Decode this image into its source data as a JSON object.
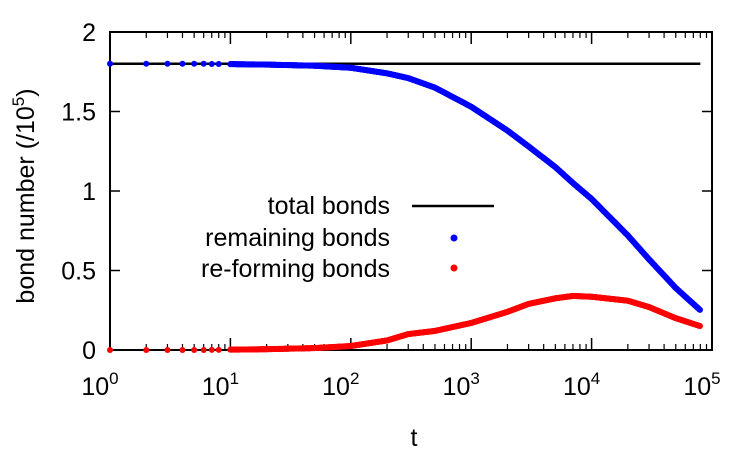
{
  "chart_data": {
    "type": "scatter",
    "title": "",
    "xlabel": "t",
    "ylabel": "bond number (/10",
    "ylabel_exponent": "5",
    "ylabel_suffix": ")",
    "x_scale": "log",
    "xlim": [
      1,
      100000
    ],
    "ylim": [
      0,
      2
    ],
    "x_ticks": [
      {
        "base": "10",
        "exp": "0",
        "value": 1
      },
      {
        "base": "10",
        "exp": "1",
        "value": 10
      },
      {
        "base": "10",
        "exp": "2",
        "value": 100
      },
      {
        "base": "10",
        "exp": "3",
        "value": 1000
      },
      {
        "base": "10",
        "exp": "4",
        "value": 10000
      },
      {
        "base": "10",
        "exp": "5",
        "value": 100000
      }
    ],
    "y_ticks": [
      {
        "label": "0",
        "value": 0
      },
      {
        "label": "0.5",
        "value": 0.5
      },
      {
        "label": "1",
        "value": 1
      },
      {
        "label": "1.5",
        "value": 1.5
      },
      {
        "label": "2",
        "value": 2
      }
    ],
    "grid": false,
    "legend_position": "center-left",
    "series": [
      {
        "name": "total bonds",
        "style": "line",
        "color": "#000000",
        "x": [
          1,
          80000
        ],
        "y": [
          1.8,
          1.8
        ]
      },
      {
        "name": "remaining bonds",
        "style": "points",
        "color": "#0000ff",
        "x": [
          1,
          2,
          3,
          4,
          5,
          6,
          7,
          8,
          10,
          20,
          50,
          100,
          200,
          300,
          500,
          1000,
          2000,
          3000,
          5000,
          7000,
          10000,
          20000,
          30000,
          50000,
          80000
        ],
        "y": [
          1.8,
          1.8,
          1.8,
          1.8,
          1.8,
          1.8,
          1.799,
          1.799,
          1.798,
          1.795,
          1.788,
          1.775,
          1.74,
          1.71,
          1.65,
          1.53,
          1.38,
          1.28,
          1.15,
          1.05,
          0.95,
          0.72,
          0.57,
          0.39,
          0.25
        ]
      },
      {
        "name": "re-forming bonds",
        "style": "points",
        "color": "#ff0000",
        "x": [
          1,
          2,
          3,
          4,
          5,
          6,
          7,
          8,
          10,
          20,
          50,
          100,
          200,
          300,
          500,
          1000,
          2000,
          3000,
          5000,
          7000,
          10000,
          20000,
          30000,
          50000,
          80000
        ],
        "y": [
          0,
          0,
          0,
          0,
          0,
          0,
          0.001,
          0.001,
          0.002,
          0.005,
          0.012,
          0.025,
          0.06,
          0.1,
          0.12,
          0.17,
          0.24,
          0.29,
          0.325,
          0.34,
          0.335,
          0.31,
          0.27,
          0.2,
          0.15
        ]
      }
    ]
  }
}
